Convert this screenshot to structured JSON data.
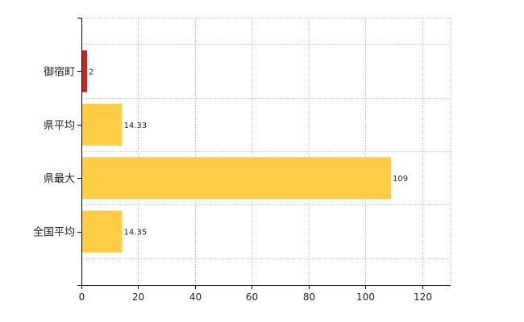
{
  "chart_data": {
    "type": "bar",
    "orientation": "horizontal",
    "categories": [
      "御宿町",
      "県平均",
      "県最大",
      "全国平均"
    ],
    "values": [
      2,
      14.33,
      109,
      14.35
    ],
    "data_labels": [
      "2",
      "14.33",
      "109",
      "14.35"
    ],
    "bar_colors": [
      "#cc2222",
      "#ffcc44",
      "#ffcc44",
      "#ffcc44"
    ],
    "xlim": [
      0,
      130
    ],
    "xticks": [
      0,
      20,
      40,
      60,
      80,
      100,
      120
    ],
    "grid": true,
    "title": "",
    "xlabel": "",
    "ylabel": ""
  }
}
